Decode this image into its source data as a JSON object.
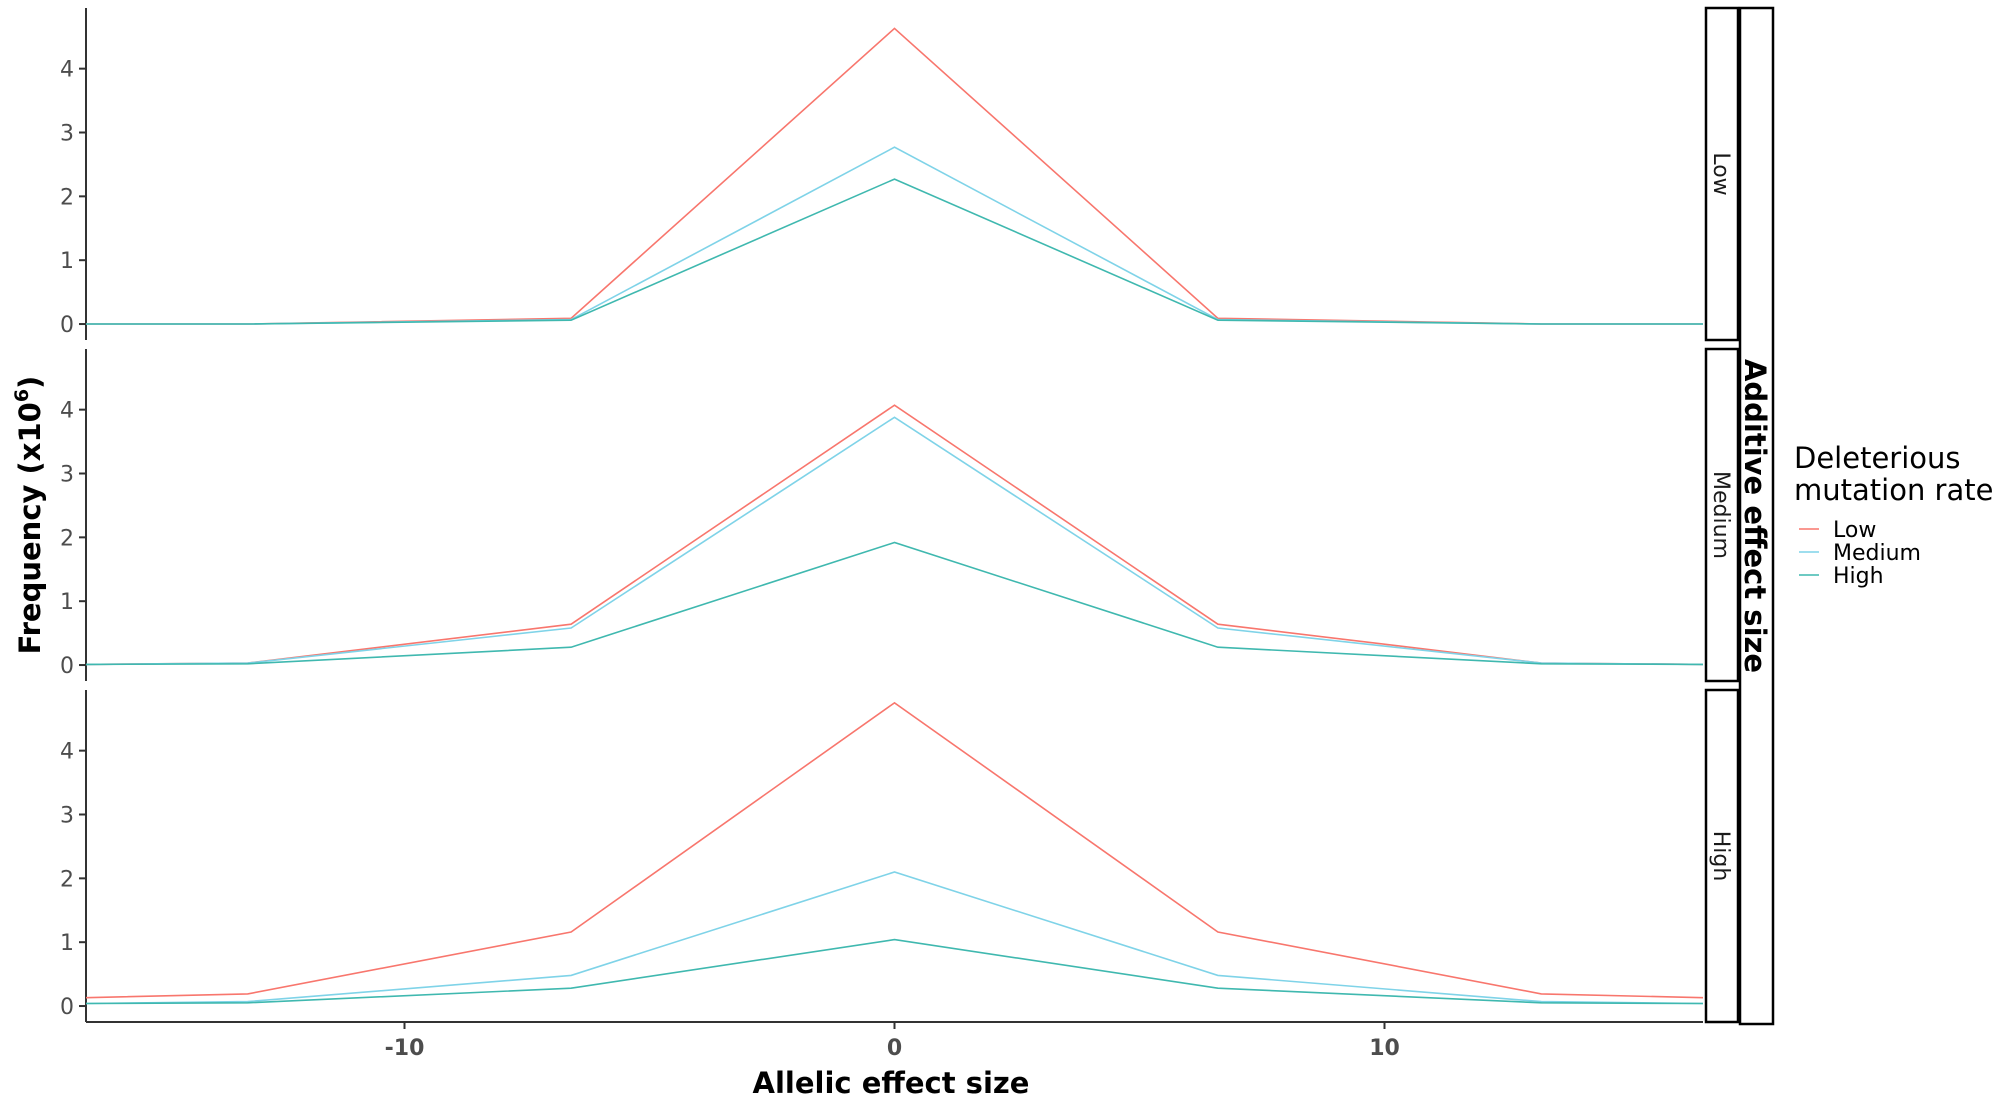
{
  "chart_data": {
    "type": "line",
    "x": [
      -16.5,
      -13.2,
      -6.6,
      0,
      6.6,
      13.2,
      16.5
    ],
    "xlabel": "Allelic effect size",
    "x_ticks": [
      -10,
      0,
      10
    ],
    "x_tick_labels": [
      "-10",
      "0",
      "10"
    ],
    "ylabel_main": "Frequency (x10",
    "ylabel_sup": "6",
    "ylabel_close": ")",
    "ylim": [
      -0.25,
      4.95
    ],
    "y_ticks": [
      0,
      1,
      2,
      3,
      4
    ],
    "y_tick_labels": [
      "0",
      "1",
      "2",
      "3",
      "4"
    ],
    "outer_facet_label": "Additive effect size",
    "legend": {
      "title_line1": "Deleterious",
      "title_line2": "mutation rate",
      "entries": [
        "Low",
        "Medium",
        "High"
      ]
    },
    "series_colors": {
      "Low": "#F8766D",
      "Medium": "#7FD3E8",
      "High": "#3FB8AF"
    },
    "panels": [
      {
        "label": "Low",
        "series": [
          {
            "name": "Low",
            "values": [
              0,
              0,
              0.09,
              4.63,
              0.09,
              0,
              0
            ]
          },
          {
            "name": "Medium",
            "values": [
              0,
              0,
              0.07,
              2.77,
              0.07,
              0,
              0
            ]
          },
          {
            "name": "High",
            "values": [
              0,
              0,
              0.06,
              2.27,
              0.06,
              0,
              0
            ]
          }
        ]
      },
      {
        "label": "Medium",
        "series": [
          {
            "name": "Low",
            "values": [
              0.01,
              0.03,
              0.64,
              4.07,
              0.64,
              0.03,
              0.01
            ]
          },
          {
            "name": "Medium",
            "values": [
              0.01,
              0.03,
              0.58,
              3.88,
              0.58,
              0.03,
              0.01
            ]
          },
          {
            "name": "High",
            "values": [
              0.01,
              0.02,
              0.28,
              1.92,
              0.28,
              0.02,
              0.01
            ]
          }
        ]
      },
      {
        "label": "High",
        "series": [
          {
            "name": "Low",
            "values": [
              0.13,
              0.19,
              1.16,
              4.75,
              1.16,
              0.19,
              0.13
            ]
          },
          {
            "name": "Medium",
            "values": [
              0.04,
              0.07,
              0.48,
              2.1,
              0.48,
              0.07,
              0.04
            ]
          },
          {
            "name": "High",
            "values": [
              0.04,
              0.05,
              0.28,
              1.04,
              0.28,
              0.05,
              0.04
            ]
          }
        ]
      }
    ]
  }
}
